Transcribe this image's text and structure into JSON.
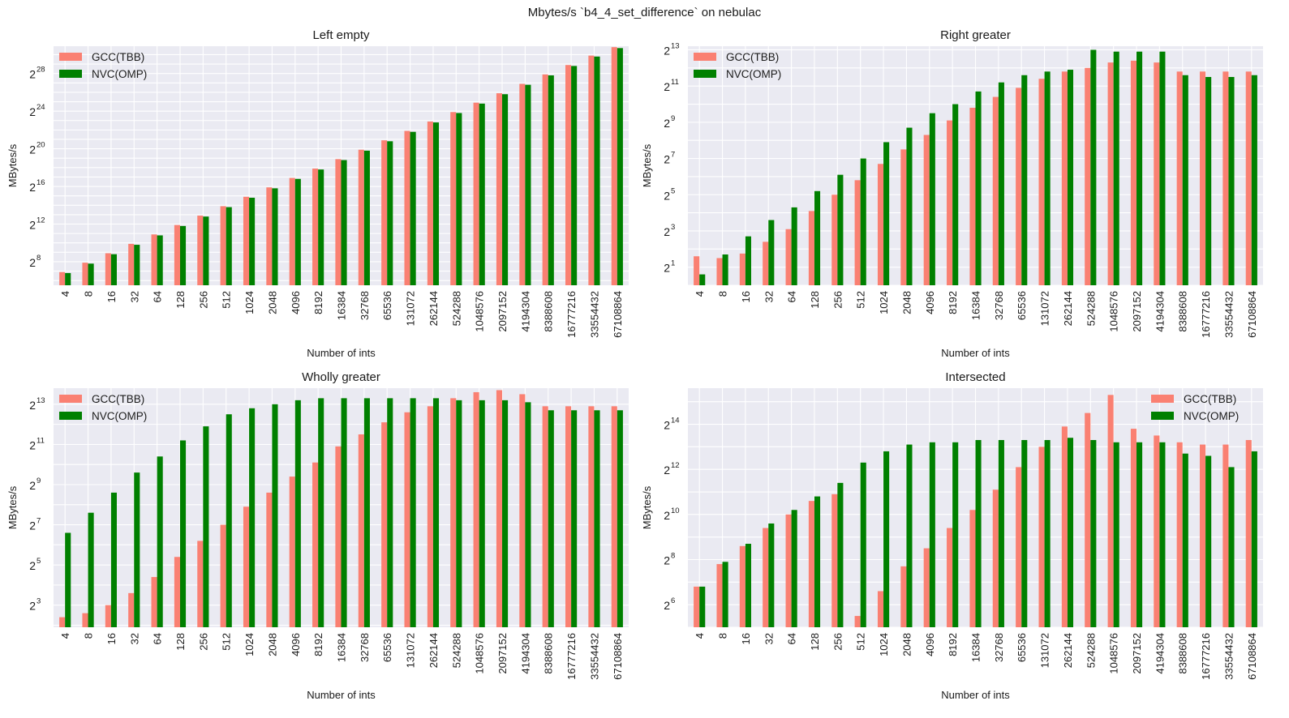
{
  "suptitle": "Mbytes/s `b4_4_set_difference` on nebulac",
  "colors": {
    "gcc": "#fa8072",
    "nvc": "#008000",
    "background": "#eaeaf2",
    "grid": "#ffffff"
  },
  "chart_data": [
    {
      "type": "bar",
      "title": "Left empty",
      "xlabel": "Number of ints",
      "ylabel": "MBytes/s",
      "yscale": "log2",
      "ylim_log2": [
        5.5,
        30.9
      ],
      "yticks_exp": [
        8,
        12,
        16,
        20,
        24,
        28
      ],
      "legend_loc": "upper left",
      "categories": [
        "4",
        "8",
        "16",
        "32",
        "64",
        "128",
        "256",
        "512",
        "1024",
        "2048",
        "4096",
        "8192",
        "16384",
        "32768",
        "65536",
        "131072",
        "262144",
        "524288",
        "1048576",
        "2097152",
        "4194304",
        "8388608",
        "16777216",
        "33554432",
        "67108864"
      ],
      "series": [
        {
          "name": "GCC(TBB)",
          "values_log2": [
            6.9,
            7.9,
            8.9,
            9.9,
            10.9,
            11.9,
            12.9,
            13.9,
            14.9,
            15.9,
            16.9,
            17.9,
            18.9,
            19.9,
            20.9,
            21.9,
            22.9,
            23.9,
            24.9,
            25.9,
            26.9,
            27.9,
            28.9,
            29.9,
            30.8
          ]
        },
        {
          "name": "NVC(OMP)",
          "values_log2": [
            6.8,
            7.8,
            8.8,
            9.8,
            10.8,
            11.8,
            12.8,
            13.8,
            14.8,
            15.8,
            16.8,
            17.8,
            18.8,
            19.8,
            20.8,
            21.8,
            22.8,
            23.8,
            24.8,
            25.8,
            26.8,
            27.8,
            28.8,
            29.8,
            30.7
          ]
        }
      ]
    },
    {
      "type": "bar",
      "title": "Right greater",
      "xlabel": "Number of ints",
      "ylabel": "MBytes/s",
      "yscale": "log2",
      "ylim_log2": [
        0,
        13.2
      ],
      "yticks_exp": [
        1,
        3,
        5,
        7,
        9,
        11,
        13
      ],
      "legend_loc": "upper left",
      "categories": [
        "4",
        "8",
        "16",
        "32",
        "64",
        "128",
        "256",
        "512",
        "1024",
        "2048",
        "4096",
        "8192",
        "16384",
        "32768",
        "65536",
        "131072",
        "262144",
        "524288",
        "1048576",
        "2097152",
        "4194304",
        "8388608",
        "16777216",
        "33554432",
        "67108864"
      ],
      "series": [
        {
          "name": "GCC(TBB)",
          "values_log2": [
            1.6,
            1.5,
            1.75,
            2.4,
            3.1,
            4.1,
            5.0,
            5.8,
            6.7,
            7.5,
            8.3,
            9.1,
            9.8,
            10.4,
            10.9,
            11.4,
            11.8,
            12.0,
            12.3,
            12.4,
            12.3,
            11.8,
            11.8,
            11.8,
            11.8
          ]
        },
        {
          "name": "NVC(OMP)",
          "values_log2": [
            0.6,
            1.7,
            2.7,
            3.6,
            4.3,
            5.2,
            6.1,
            7.0,
            7.9,
            8.7,
            9.5,
            10.0,
            10.7,
            11.2,
            11.6,
            11.8,
            11.9,
            13.0,
            12.9,
            12.9,
            12.9,
            11.6,
            11.5,
            11.5,
            11.6
          ]
        }
      ]
    },
    {
      "type": "bar",
      "title": "Wholly greater",
      "xlabel": "Number of ints",
      "ylabel": "MBytes/s",
      "yscale": "log2",
      "ylim_log2": [
        1.9,
        13.8
      ],
      "yticks_exp": [
        3,
        5,
        7,
        9,
        11,
        13
      ],
      "legend_loc": "upper left",
      "categories": [
        "4",
        "8",
        "16",
        "32",
        "64",
        "128",
        "256",
        "512",
        "1024",
        "2048",
        "4096",
        "8192",
        "16384",
        "32768",
        "65536",
        "131072",
        "262144",
        "524288",
        "1048576",
        "2097152",
        "4194304",
        "8388608",
        "16777216",
        "33554432",
        "67108864"
      ],
      "series": [
        {
          "name": "GCC(TBB)",
          "values_log2": [
            2.4,
            2.6,
            3.0,
            3.6,
            4.4,
            5.4,
            6.2,
            7.0,
            7.9,
            8.6,
            9.4,
            10.1,
            10.9,
            11.5,
            12.1,
            12.6,
            12.9,
            13.3,
            13.6,
            13.7,
            13.5,
            12.9,
            12.9,
            12.9,
            12.9
          ]
        },
        {
          "name": "NVC(OMP)",
          "values_log2": [
            6.6,
            7.6,
            8.6,
            9.6,
            10.4,
            11.2,
            11.9,
            12.5,
            12.8,
            13.0,
            13.2,
            13.3,
            13.3,
            13.3,
            13.3,
            13.3,
            13.3,
            13.2,
            13.2,
            13.2,
            13.1,
            12.7,
            12.7,
            12.7,
            12.7
          ]
        }
      ]
    },
    {
      "type": "bar",
      "title": "Intersected",
      "xlabel": "Number of ints",
      "ylabel": "MBytes/s",
      "yscale": "log2",
      "ylim_log2": [
        5.0,
        15.6
      ],
      "yticks_exp": [
        6,
        8,
        10,
        12,
        14
      ],
      "legend_loc": "upper right",
      "categories": [
        "4",
        "8",
        "16",
        "32",
        "64",
        "128",
        "256",
        "512",
        "1024",
        "2048",
        "4096",
        "8192",
        "16384",
        "32768",
        "65536",
        "131072",
        "262144",
        "524288",
        "1048576",
        "2097152",
        "4194304",
        "8388608",
        "16777216",
        "33554432",
        "67108864"
      ],
      "series": [
        {
          "name": "GCC(TBB)",
          "values_log2": [
            6.8,
            7.8,
            8.6,
            9.4,
            10.0,
            10.6,
            10.9,
            5.5,
            6.6,
            7.7,
            8.5,
            9.4,
            10.2,
            11.1,
            12.1,
            13.0,
            13.9,
            14.5,
            15.3,
            13.8,
            13.5,
            13.2,
            13.1,
            13.1,
            13.3
          ]
        },
        {
          "name": "NVC(OMP)",
          "values_log2": [
            6.8,
            7.9,
            8.7,
            9.6,
            10.2,
            10.8,
            11.4,
            12.3,
            12.8,
            13.1,
            13.2,
            13.2,
            13.3,
            13.3,
            13.3,
            13.3,
            13.4,
            13.3,
            13.2,
            13.2,
            13.2,
            12.7,
            12.6,
            12.1,
            12.8
          ]
        }
      ]
    }
  ]
}
